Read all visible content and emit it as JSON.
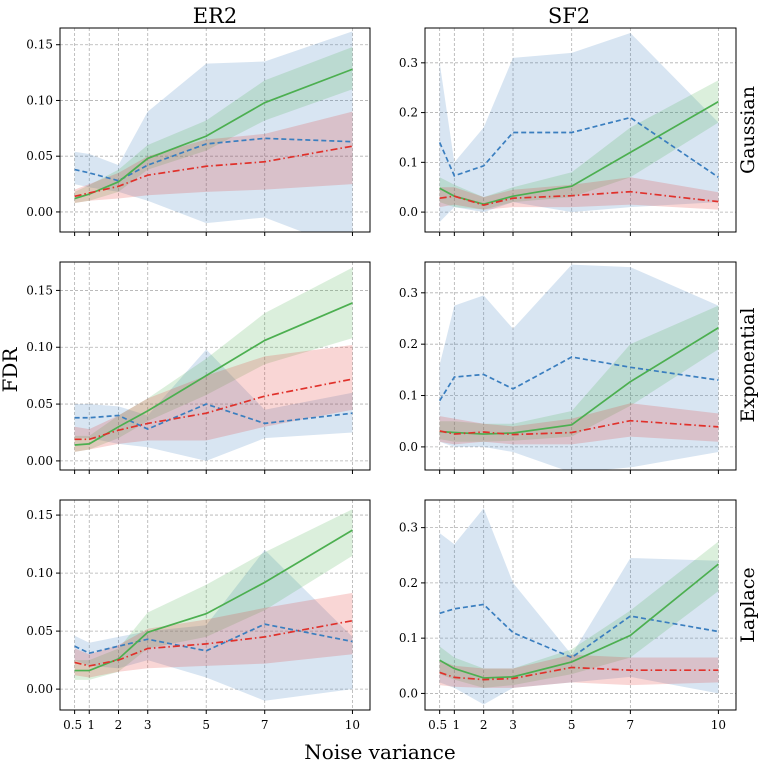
{
  "figure": {
    "column_titles": [
      "ER2",
      "SF2"
    ],
    "row_titles": [
      "Gaussian",
      "Exponential",
      "Laplace"
    ],
    "ylabel": "FDR",
    "xlabel": "Noise variance"
  },
  "colors": {
    "blue": "#3a7ebf",
    "green": "#4caf50",
    "red": "#e0312b"
  },
  "chart_data": [
    {
      "type": "line",
      "column": "ER2",
      "row": "Gaussian",
      "x": [
        0.5,
        1,
        2,
        3,
        5,
        7,
        10
      ],
      "x_ticks": [
        0.5,
        1,
        2,
        3,
        5,
        7,
        10
      ],
      "x_tick_labels": [
        "0.5",
        "1",
        "2",
        "3",
        "5",
        "7",
        "10"
      ],
      "ylim": [
        -0.018,
        0.165
      ],
      "y_ticks": [
        0.0,
        0.05,
        0.1,
        0.15
      ],
      "y_tick_labels": [
        "0.00",
        "0.05",
        "0.10",
        "0.15"
      ],
      "show_xticklabels": false,
      "grid": true,
      "series": [
        {
          "name": "blue",
          "style": "dashed",
          "values": [
            0.038,
            0.035,
            0.028,
            0.042,
            0.061,
            0.066,
            0.063
          ],
          "band_low": [
            0.025,
            0.022,
            0.018,
            0.01,
            -0.01,
            -0.005,
            -0.035
          ],
          "band_high": [
            0.054,
            0.052,
            0.042,
            0.09,
            0.133,
            0.135,
            0.162
          ]
        },
        {
          "name": "green",
          "style": "solid",
          "values": [
            0.012,
            0.016,
            0.027,
            0.048,
            0.068,
            0.098,
            0.128
          ],
          "band_low": [
            0.008,
            0.01,
            0.018,
            0.038,
            0.055,
            0.082,
            0.11
          ],
          "band_high": [
            0.018,
            0.024,
            0.038,
            0.06,
            0.082,
            0.118,
            0.148
          ]
        },
        {
          "name": "red",
          "style": "dashdot",
          "values": [
            0.014,
            0.017,
            0.023,
            0.033,
            0.041,
            0.045,
            0.059
          ],
          "band_low": [
            0.008,
            0.01,
            0.012,
            0.015,
            0.018,
            0.02,
            0.025
          ],
          "band_high": [
            0.02,
            0.025,
            0.035,
            0.05,
            0.065,
            0.07,
            0.09
          ]
        }
      ]
    },
    {
      "type": "line",
      "column": "SF2",
      "row": "Gaussian",
      "x": [
        0.5,
        1,
        2,
        3,
        5,
        7,
        10
      ],
      "x_ticks": [
        0.5,
        1,
        2,
        3,
        5,
        7,
        10
      ],
      "x_tick_labels": [
        "0.5",
        "1",
        "2",
        "3",
        "5",
        "7",
        "10"
      ],
      "ylim": [
        -0.04,
        0.37
      ],
      "y_ticks": [
        0.0,
        0.1,
        0.2,
        0.3
      ],
      "y_tick_labels": [
        "0.0",
        "0.1",
        "0.2",
        "0.3"
      ],
      "show_xticklabels": false,
      "grid": true,
      "series": [
        {
          "name": "blue",
          "style": "dashed",
          "values": [
            0.14,
            0.073,
            0.093,
            0.16,
            0.16,
            0.19,
            0.07
          ],
          "band_low": [
            -0.02,
            0.01,
            0.0,
            0.02,
            0.0,
            0.01,
            0.02
          ],
          "band_high": [
            0.3,
            0.1,
            0.17,
            0.31,
            0.32,
            0.36,
            0.18
          ]
        },
        {
          "name": "green",
          "style": "solid",
          "values": [
            0.048,
            0.032,
            0.016,
            0.032,
            0.052,
            0.12,
            0.222
          ],
          "band_low": [
            0.02,
            0.01,
            0.005,
            0.02,
            0.03,
            0.07,
            0.18
          ],
          "band_high": [
            0.07,
            0.055,
            0.03,
            0.05,
            0.08,
            0.17,
            0.265
          ]
        },
        {
          "name": "red",
          "style": "dashdot",
          "values": [
            0.028,
            0.032,
            0.014,
            0.028,
            0.033,
            0.041,
            0.021
          ],
          "band_low": [
            0.01,
            0.015,
            0.005,
            0.01,
            0.01,
            0.015,
            0.005
          ],
          "band_high": [
            0.05,
            0.05,
            0.03,
            0.045,
            0.055,
            0.07,
            0.04
          ]
        }
      ]
    },
    {
      "type": "line",
      "column": "ER2",
      "row": "Exponential",
      "x": [
        0.5,
        1,
        2,
        3,
        5,
        7,
        10
      ],
      "x_ticks": [
        0.5,
        1,
        2,
        3,
        5,
        7,
        10
      ],
      "x_tick_labels": [
        "0.5",
        "1",
        "2",
        "3",
        "5",
        "7",
        "10"
      ],
      "ylim": [
        -0.008,
        0.175
      ],
      "y_ticks": [
        0.0,
        0.05,
        0.1,
        0.15
      ],
      "y_tick_labels": [
        "0.00",
        "0.05",
        "0.10",
        "0.15"
      ],
      "show_xticklabels": false,
      "grid": true,
      "series": [
        {
          "name": "blue",
          "style": "dashed",
          "values": [
            0.038,
            0.038,
            0.04,
            0.028,
            0.05,
            0.033,
            0.042
          ],
          "band_low": [
            0.02,
            0.02,
            0.015,
            0.012,
            0.0,
            0.02,
            0.025
          ],
          "band_high": [
            0.05,
            0.05,
            0.048,
            0.04,
            0.098,
            0.045,
            0.06
          ]
        },
        {
          "name": "green",
          "style": "solid",
          "values": [
            0.014,
            0.015,
            0.03,
            0.044,
            0.075,
            0.106,
            0.139
          ],
          "band_low": [
            0.008,
            0.01,
            0.02,
            0.035,
            0.058,
            0.085,
            0.108
          ],
          "band_high": [
            0.022,
            0.022,
            0.04,
            0.055,
            0.09,
            0.13,
            0.17
          ]
        },
        {
          "name": "red",
          "style": "dashdot",
          "values": [
            0.019,
            0.019,
            0.027,
            0.033,
            0.042,
            0.057,
            0.072
          ],
          "band_low": [
            0.008,
            0.01,
            0.015,
            0.018,
            0.018,
            0.03,
            0.045
          ],
          "band_high": [
            0.03,
            0.028,
            0.04,
            0.055,
            0.075,
            0.092,
            0.102
          ]
        }
      ]
    },
    {
      "type": "line",
      "column": "SF2",
      "row": "Exponential",
      "x": [
        0.5,
        1,
        2,
        3,
        5,
        7,
        10
      ],
      "x_ticks": [
        0.5,
        1,
        2,
        3,
        5,
        7,
        10
      ],
      "x_tick_labels": [
        "0.5",
        "1",
        "2",
        "3",
        "5",
        "7",
        "10"
      ],
      "ylim": [
        -0.045,
        0.36
      ],
      "y_ticks": [
        0.0,
        0.1,
        0.2,
        0.3
      ],
      "y_tick_labels": [
        "0.0",
        "0.1",
        "0.2",
        "0.3"
      ],
      "show_xticklabels": false,
      "grid": true,
      "series": [
        {
          "name": "blue",
          "style": "dashed",
          "values": [
            0.09,
            0.136,
            0.141,
            0.113,
            0.175,
            0.155,
            0.13
          ],
          "band_low": [
            0.01,
            0.0,
            0.0,
            -0.01,
            -0.05,
            -0.04,
            -0.01
          ],
          "band_high": [
            0.16,
            0.275,
            0.295,
            0.23,
            0.355,
            0.35,
            0.275
          ]
        },
        {
          "name": "green",
          "style": "solid",
          "values": [
            0.03,
            0.028,
            0.025,
            0.027,
            0.043,
            0.127,
            0.232
          ],
          "band_low": [
            0.015,
            0.01,
            0.01,
            0.012,
            0.02,
            0.08,
            0.19
          ],
          "band_high": [
            0.05,
            0.05,
            0.045,
            0.045,
            0.07,
            0.2,
            0.275
          ]
        },
        {
          "name": "red",
          "style": "dashdot",
          "values": [
            0.031,
            0.025,
            0.029,
            0.024,
            0.028,
            0.051,
            0.039
          ],
          "band_low": [
            0.01,
            0.005,
            0.01,
            0.005,
            0.005,
            0.02,
            0.01
          ],
          "band_high": [
            0.06,
            0.055,
            0.045,
            0.04,
            0.055,
            0.085,
            0.065
          ]
        }
      ]
    },
    {
      "type": "line",
      "column": "ER2",
      "row": "Laplace",
      "x": [
        0.5,
        1,
        2,
        3,
        5,
        7,
        10
      ],
      "x_ticks": [
        0.5,
        1,
        2,
        3,
        5,
        7,
        10
      ],
      "x_tick_labels": [
        "0.5",
        "1",
        "2",
        "3",
        "5",
        "7",
        "10"
      ],
      "ylim": [
        -0.018,
        0.163
      ],
      "y_ticks": [
        0.0,
        0.05,
        0.1,
        0.15
      ],
      "y_tick_labels": [
        "0.00",
        "0.05",
        "0.10",
        "0.15"
      ],
      "show_xticklabels": true,
      "grid": true,
      "series": [
        {
          "name": "blue",
          "style": "dashed",
          "values": [
            0.037,
            0.031,
            0.037,
            0.043,
            0.033,
            0.056,
            0.041
          ],
          "band_low": [
            0.025,
            0.02,
            0.018,
            0.025,
            0.01,
            -0.01,
            0.0
          ],
          "band_high": [
            0.046,
            0.04,
            0.045,
            0.05,
            0.055,
            0.12,
            0.045
          ]
        },
        {
          "name": "green",
          "style": "solid",
          "values": [
            0.016,
            0.016,
            0.026,
            0.049,
            0.065,
            0.092,
            0.137
          ],
          "band_low": [
            0.008,
            0.008,
            0.015,
            0.035,
            0.045,
            0.068,
            0.115
          ],
          "band_high": [
            0.025,
            0.025,
            0.035,
            0.066,
            0.09,
            0.118,
            0.155
          ]
        },
        {
          "name": "red",
          "style": "dashdot",
          "values": [
            0.023,
            0.02,
            0.025,
            0.035,
            0.039,
            0.045,
            0.059
          ],
          "band_low": [
            0.012,
            0.01,
            0.015,
            0.018,
            0.02,
            0.022,
            0.03
          ],
          "band_high": [
            0.035,
            0.03,
            0.038,
            0.052,
            0.06,
            0.07,
            0.083
          ]
        }
      ]
    },
    {
      "type": "line",
      "column": "SF2",
      "row": "Laplace",
      "x": [
        0.5,
        1,
        2,
        3,
        5,
        7,
        10
      ],
      "x_ticks": [
        0.5,
        1,
        2,
        3,
        5,
        7,
        10
      ],
      "x_tick_labels": [
        "0.5",
        "1",
        "2",
        "3",
        "5",
        "7",
        "10"
      ],
      "ylim": [
        -0.03,
        0.35
      ],
      "y_ticks": [
        0.0,
        0.1,
        0.2,
        0.3
      ],
      "y_tick_labels": [
        "0.0",
        "0.1",
        "0.2",
        "0.3"
      ],
      "show_xticklabels": true,
      "grid": true,
      "series": [
        {
          "name": "blue",
          "style": "dashed",
          "values": [
            0.145,
            0.153,
            0.161,
            0.11,
            0.065,
            0.14,
            0.112
          ],
          "band_low": [
            0.02,
            0.01,
            -0.02,
            0.01,
            0.02,
            0.03,
            0.0
          ],
          "band_high": [
            0.29,
            0.27,
            0.335,
            0.2,
            0.07,
            0.245,
            0.24
          ]
        },
        {
          "name": "green",
          "style": "solid",
          "values": [
            0.06,
            0.045,
            0.028,
            0.03,
            0.057,
            0.105,
            0.234
          ],
          "band_low": [
            0.035,
            0.025,
            0.01,
            0.015,
            0.035,
            0.065,
            0.185
          ],
          "band_high": [
            0.085,
            0.065,
            0.045,
            0.045,
            0.08,
            0.15,
            0.275
          ]
        },
        {
          "name": "red",
          "style": "dashdot",
          "values": [
            0.038,
            0.029,
            0.025,
            0.027,
            0.047,
            0.042,
            0.042
          ],
          "band_low": [
            0.015,
            0.012,
            0.01,
            0.01,
            0.02,
            0.015,
            0.02
          ],
          "band_high": [
            0.06,
            0.05,
            0.045,
            0.045,
            0.07,
            0.065,
            0.065
          ]
        }
      ]
    }
  ]
}
